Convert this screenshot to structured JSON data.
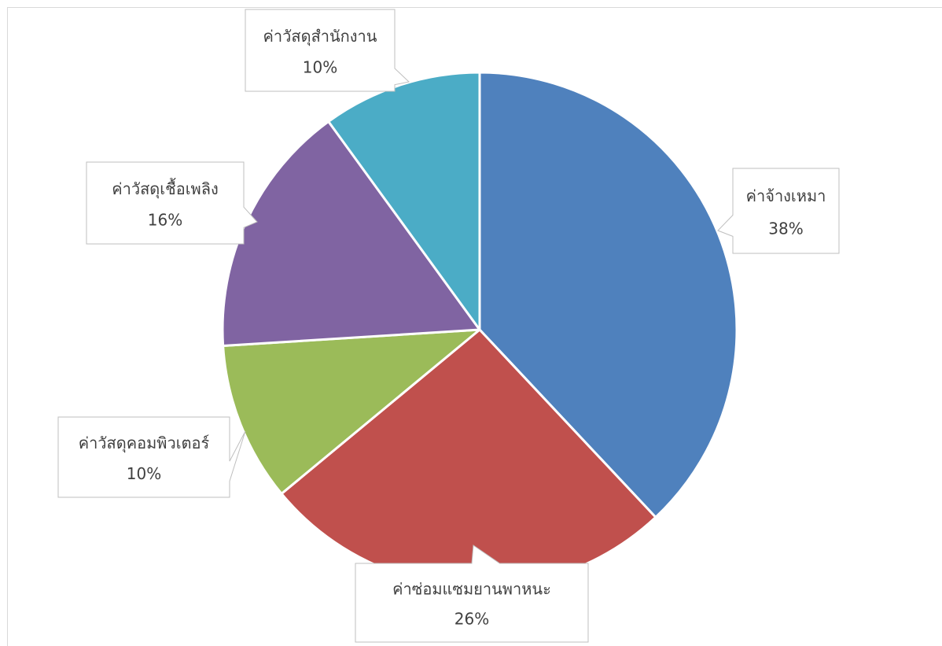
{
  "chart_data": {
    "type": "pie",
    "title": "",
    "categories": [
      "ค่าจ้างเหมา",
      "ค่าซ่อมแซมยานพาหนะ",
      "ค่าวัสดุคอมพิวเตอร์",
      "ค่าวัสดุเชื้อเพลิง",
      "ค่าวัสดุสำนักงาน"
    ],
    "values": [
      38,
      26,
      10,
      16,
      10
    ],
    "value_labels": [
      "38%",
      "26%",
      "10%",
      "16%",
      "10%"
    ],
    "colors": [
      "#4f81bd",
      "#c0504d",
      "#9bbb59",
      "#8064a2",
      "#4bacc6"
    ],
    "legend": "none",
    "data_labels": "callouts"
  }
}
